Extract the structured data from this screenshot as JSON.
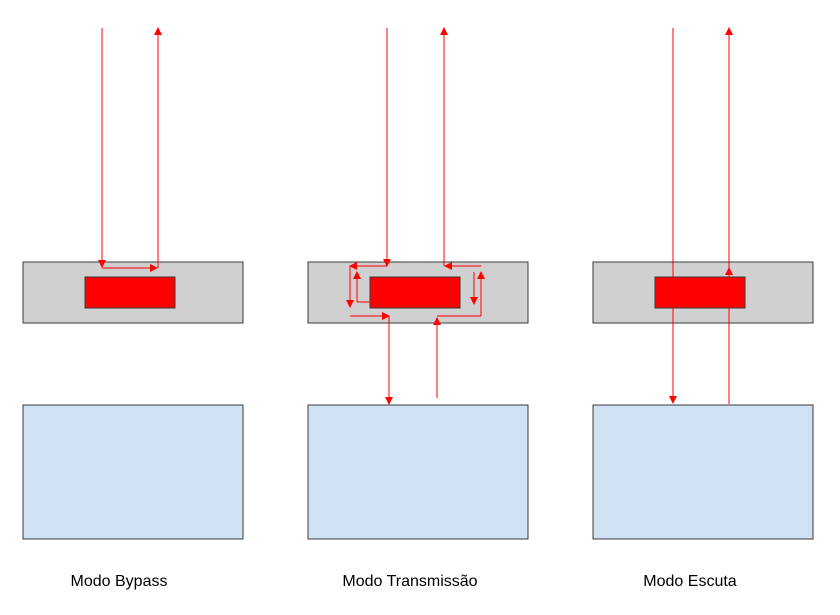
{
  "colors": {
    "background": "#ffffff",
    "device": "#d0d0d0",
    "chip": "#ff0000",
    "host": "#cfe2f3",
    "outline": "#3a3a3a",
    "signal": "#ff0000"
  },
  "panels": [
    {
      "mode": "bypass",
      "caption": "Modo Bypass"
    },
    {
      "mode": "transmissao",
      "caption": "Modo Transmissão"
    },
    {
      "mode": "escuta",
      "caption": "Modo Escuta"
    }
  ]
}
